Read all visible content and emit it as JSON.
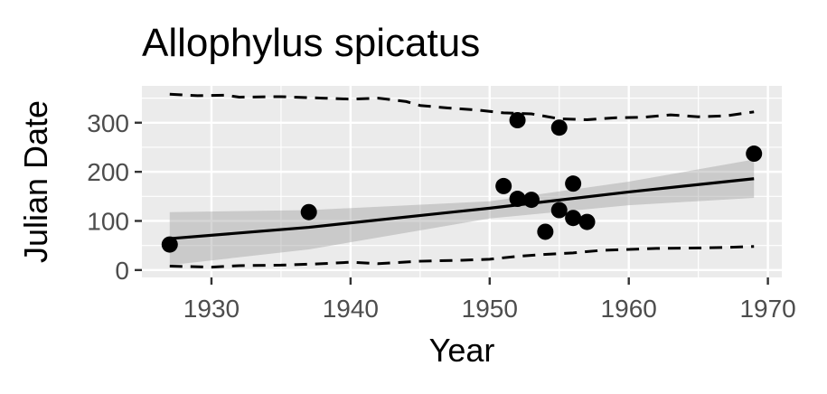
{
  "chart_data": {
    "type": "scatter",
    "title": "Allophylus spicatus",
    "xlabel": "Year",
    "ylabel": "Julian Date",
    "xlim": [
      1925,
      1971
    ],
    "ylim": [
      -15,
      375
    ],
    "x_ticks": [
      1930,
      1940,
      1950,
      1960,
      1970
    ],
    "y_ticks": [
      0,
      100,
      200,
      300
    ],
    "grid": true,
    "legend": "none",
    "points": [
      {
        "x": 1927,
        "y": 52
      },
      {
        "x": 1937,
        "y": 118
      },
      {
        "x": 1951,
        "y": 171
      },
      {
        "x": 1952,
        "y": 305
      },
      {
        "x": 1952,
        "y": 145
      },
      {
        "x": 1953,
        "y": 143
      },
      {
        "x": 1954,
        "y": 78
      },
      {
        "x": 1955,
        "y": 290
      },
      {
        "x": 1955,
        "y": 122
      },
      {
        "x": 1956,
        "y": 176
      },
      {
        "x": 1956,
        "y": 106
      },
      {
        "x": 1957,
        "y": 98
      },
      {
        "x": 1969,
        "y": 237
      }
    ],
    "trend_line": [
      {
        "x": 1927,
        "y": 64
      },
      {
        "x": 1937,
        "y": 87
      },
      {
        "x": 1950,
        "y": 126
      },
      {
        "x": 1960,
        "y": 159
      },
      {
        "x": 1969,
        "y": 186
      }
    ],
    "confidence_band": {
      "x": [
        1927,
        1937,
        1950,
        1960,
        1969
      ],
      "lower": [
        10,
        42,
        105,
        132,
        147
      ],
      "upper": [
        118,
        122,
        140,
        180,
        225
      ]
    },
    "upper_dashed": [
      {
        "x": 1927,
        "y": 358
      },
      {
        "x": 1929,
        "y": 355
      },
      {
        "x": 1931,
        "y": 356
      },
      {
        "x": 1932,
        "y": 352
      },
      {
        "x": 1935,
        "y": 353
      },
      {
        "x": 1938,
        "y": 350
      },
      {
        "x": 1940,
        "y": 348
      },
      {
        "x": 1942,
        "y": 350
      },
      {
        "x": 1944,
        "y": 343
      },
      {
        "x": 1945,
        "y": 335
      },
      {
        "x": 1947,
        "y": 330
      },
      {
        "x": 1949,
        "y": 326
      },
      {
        "x": 1951,
        "y": 320
      },
      {
        "x": 1953,
        "y": 318
      },
      {
        "x": 1955,
        "y": 308
      },
      {
        "x": 1957,
        "y": 306
      },
      {
        "x": 1959,
        "y": 310
      },
      {
        "x": 1961,
        "y": 311
      },
      {
        "x": 1963,
        "y": 316
      },
      {
        "x": 1965,
        "y": 312
      },
      {
        "x": 1967,
        "y": 314
      },
      {
        "x": 1969,
        "y": 322
      }
    ],
    "lower_dashed": [
      {
        "x": 1927,
        "y": 8
      },
      {
        "x": 1930,
        "y": 6
      },
      {
        "x": 1932,
        "y": 9
      },
      {
        "x": 1935,
        "y": 10
      },
      {
        "x": 1938,
        "y": 13
      },
      {
        "x": 1940,
        "y": 16
      },
      {
        "x": 1942,
        "y": 13
      },
      {
        "x": 1945,
        "y": 18
      },
      {
        "x": 1948,
        "y": 20
      },
      {
        "x": 1950,
        "y": 22
      },
      {
        "x": 1952,
        "y": 28
      },
      {
        "x": 1954,
        "y": 32
      },
      {
        "x": 1956,
        "y": 35
      },
      {
        "x": 1958,
        "y": 40
      },
      {
        "x": 1960,
        "y": 42
      },
      {
        "x": 1962,
        "y": 44
      },
      {
        "x": 1965,
        "y": 45
      },
      {
        "x": 1967,
        "y": 46
      },
      {
        "x": 1969,
        "y": 48
      }
    ]
  }
}
